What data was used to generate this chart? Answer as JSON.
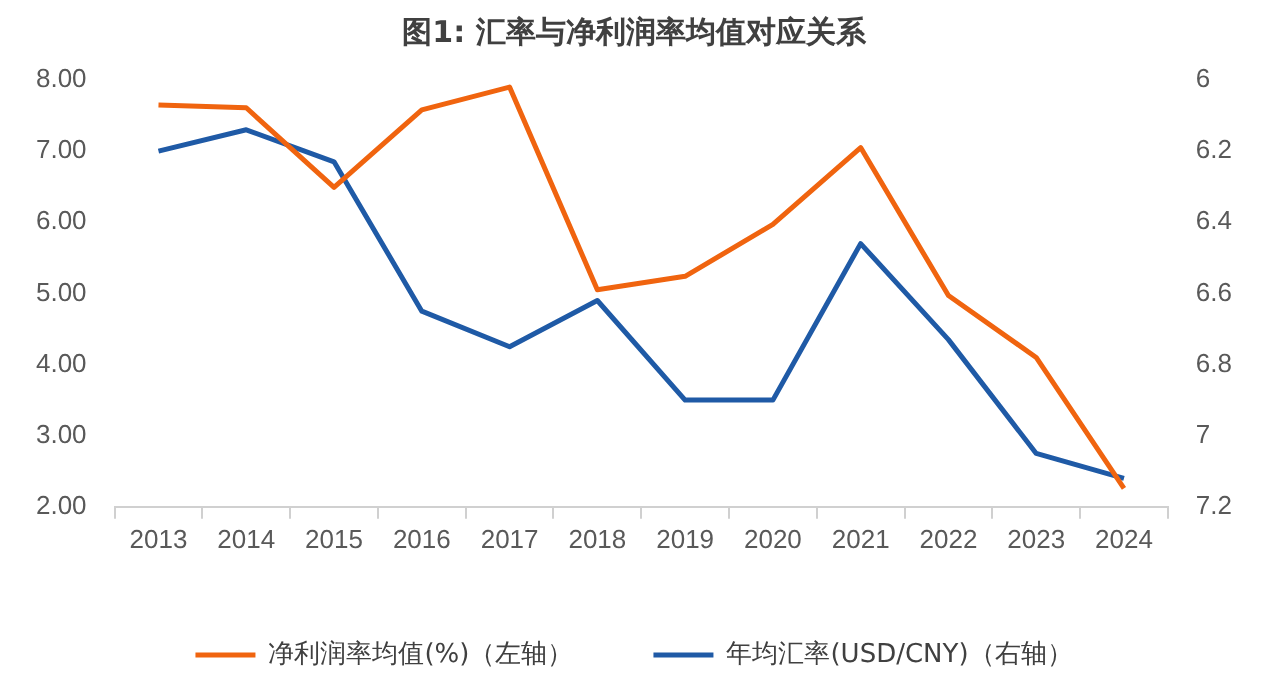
{
  "chart_data": {
    "type": "line",
    "title": "图1: 汇率与净利润率均值对应关系",
    "categories": [
      "2013",
      "2014",
      "2015",
      "2016",
      "2017",
      "2018",
      "2019",
      "2020",
      "2021",
      "2022",
      "2023",
      "2024"
    ],
    "series": [
      {
        "name": "净利润率均值(%)（左轴）",
        "color": "#f0640f",
        "values": [
          7.65,
          7.61,
          6.49,
          7.58,
          7.9,
          5.05,
          5.24,
          5.97,
          7.05,
          4.97,
          4.1,
          2.26
        ]
      },
      {
        "name": "年均汇率(USD/CNY)（右轴）",
        "color": "#1f5aa6",
        "axis": "y2",
        "values": [
          6.2,
          6.14,
          6.23,
          6.65,
          6.75,
          6.62,
          6.9,
          6.9,
          6.46,
          6.73,
          7.05,
          7.12
        ]
      }
    ],
    "ylim": [
      2,
      8
    ],
    "yticks": [
      {
        "value": 2,
        "label": "2.00"
      },
      {
        "value": 3,
        "label": "3.00"
      },
      {
        "value": 4,
        "label": "4.00"
      },
      {
        "value": 5,
        "label": "5.00"
      },
      {
        "value": 6,
        "label": "6.00"
      },
      {
        "value": 7,
        "label": "7.00"
      },
      {
        "value": 8,
        "label": "8.00"
      }
    ],
    "y2lim": [
      7.2,
      6
    ],
    "y2ticks": [
      6,
      6.2,
      6.4,
      6.6,
      6.8,
      7,
      7.2
    ],
    "grid": false,
    "legend": "bottom",
    "marker": "none",
    "line_style": "solid"
  }
}
